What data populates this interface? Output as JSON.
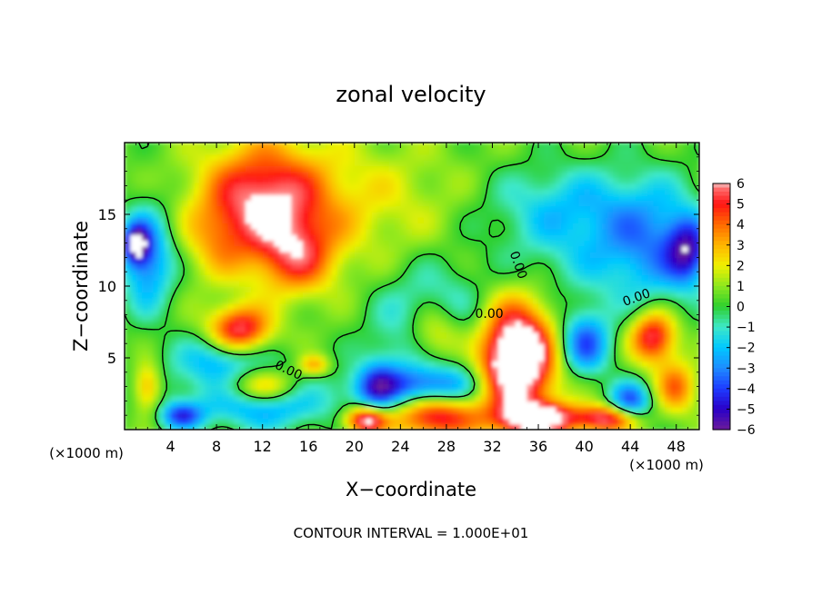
{
  "chart_data": {
    "type": "heatmap",
    "title": "zonal velocity",
    "xlabel": "X−coordinate",
    "ylabel": "Z−coordinate",
    "x_unit_left": "(×1000 m)",
    "x_unit_right": "(×1000 m)",
    "footer": "CONTOUR INTERVAL = 1.000E+01",
    "xlim": [
      0,
      50
    ],
    "ylim": [
      0,
      20
    ],
    "x_ticks": [
      4,
      8,
      12,
      16,
      20,
      24,
      28,
      32,
      36,
      40,
      44,
      48
    ],
    "x_tick_labels": [
      "4",
      "8",
      "12",
      "16",
      "20",
      "24",
      "28",
      "32",
      "36",
      "40",
      "44",
      "48"
    ],
    "y_ticks": [
      5,
      10,
      15
    ],
    "y_tick_labels": [
      "5",
      "10",
      "15"
    ],
    "colorbar": {
      "min": -6,
      "max": 6,
      "ticks": [
        "6",
        "5",
        "4",
        "3",
        "2",
        "1",
        "0",
        "−1",
        "−2",
        "−3",
        "−4",
        "−5",
        "−6"
      ],
      "colors": [
        "#6a1b9a",
        "#2a00c8",
        "#1e3cff",
        "#1e8cff",
        "#00c8ff",
        "#3ee8c8",
        "#2ed02e",
        "#8ee81e",
        "#f0f000",
        "#ffb400",
        "#ff6a00",
        "#ff1414",
        "#ff8c8c"
      ]
    },
    "contour_labels": [
      "0.00",
      "0.00",
      "0.00",
      "0.00"
    ],
    "background_value": 0.5,
    "blobs": [
      {
        "x": 12,
        "z": 16,
        "rx": 6,
        "rz": 4.5,
        "v": 5.5
      },
      {
        "x": 15,
        "z": 12,
        "rx": 4,
        "rz": 3,
        "v": 4
      },
      {
        "x": 8,
        "z": 13,
        "rx": 3,
        "rz": 3,
        "v": 2
      },
      {
        "x": 2,
        "z": 12,
        "rx": 2.5,
        "rz": 4,
        "v": -4.5
      },
      {
        "x": 1,
        "z": 13,
        "rx": 1.2,
        "rz": 1.5,
        "v": -6
      },
      {
        "x": 46,
        "z": 13,
        "rx": 5,
        "rz": 5,
        "v": -3
      },
      {
        "x": 49,
        "z": 12.5,
        "rx": 2,
        "rz": 2.5,
        "v": -5
      },
      {
        "x": 38,
        "z": 16,
        "rx": 8,
        "rz": 3,
        "v": -2
      },
      {
        "x": 10,
        "z": 7,
        "rx": 3,
        "rz": 1.8,
        "v": 6
      },
      {
        "x": 8,
        "z": 5,
        "rx": 4,
        "rz": 2,
        "v": -3
      },
      {
        "x": 12,
        "z": 3,
        "rx": 4.5,
        "rz": 1.5,
        "v": 7
      },
      {
        "x": 12,
        "z": 2.5,
        "rx": 6.5,
        "rz": 2.3,
        "v": -6
      },
      {
        "x": 16.5,
        "z": 4.5,
        "rx": 1.5,
        "rz": 0.8,
        "v": 4
      },
      {
        "x": 27,
        "z": 6.5,
        "rx": 3.2,
        "rz": 2.8,
        "v": 7
      },
      {
        "x": 27,
        "z": 6.5,
        "rx": 4.8,
        "rz": 4.2,
        "v": -6
      },
      {
        "x": 34,
        "z": 5,
        "rx": 3.4,
        "rz": 4,
        "v": 7
      },
      {
        "x": 34,
        "z": 5,
        "rx": 5,
        "rz": 5,
        "v": 3
      },
      {
        "x": 40,
        "z": 6,
        "rx": 2.5,
        "rz": 2.5,
        "v": -5
      },
      {
        "x": 46,
        "z": 6.5,
        "rx": 2.2,
        "rz": 2,
        "v": 6
      },
      {
        "x": 2,
        "z": 3,
        "rx": 1.5,
        "rz": 2,
        "v": 5
      },
      {
        "x": 2,
        "z": 3,
        "rx": 2.5,
        "rz": 2.5,
        "v": -2
      },
      {
        "x": 27,
        "z": 1,
        "rx": 4,
        "rz": 1.8,
        "v": 6
      },
      {
        "x": 26,
        "z": 3,
        "rx": 6,
        "rz": 1.5,
        "v": -4
      },
      {
        "x": 36,
        "z": 0.8,
        "rx": 4,
        "rz": 1.2,
        "v": 7
      },
      {
        "x": 42,
        "z": 0.8,
        "rx": 3,
        "rz": 1,
        "v": 6
      },
      {
        "x": 21,
        "z": 0.7,
        "rx": 2,
        "rz": 1,
        "v": 7
      },
      {
        "x": 22,
        "z": 3,
        "rx": 2,
        "rz": 2,
        "v": -4
      },
      {
        "x": 48,
        "z": 3,
        "rx": 2,
        "rz": 2,
        "v": 4
      },
      {
        "x": 44,
        "z": 2,
        "rx": 2,
        "rz": 1.5,
        "v": -5
      },
      {
        "x": 5,
        "z": 1,
        "rx": 2,
        "rz": 1,
        "v": -5
      }
    ]
  }
}
